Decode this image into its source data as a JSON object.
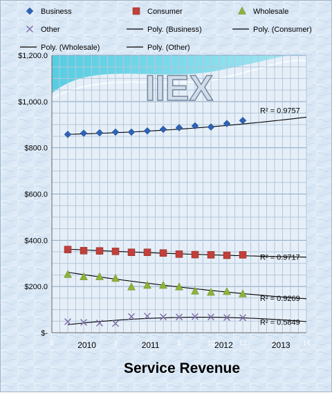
{
  "chart_data": {
    "type": "scatter",
    "title": "Service Revenue",
    "watermark": "IIEX",
    "xlim": [
      0,
      16
    ],
    "ylim": [
      0,
      1200
    ],
    "x_minor_ticks": [
      "0",
      "2",
      "4",
      "6",
      "8",
      "10",
      "12",
      "14",
      "16"
    ],
    "x_year_labels": [
      {
        "x": 2.2,
        "label": "2010"
      },
      {
        "x": 6.2,
        "label": "2011"
      },
      {
        "x": 10.8,
        "label": "2012"
      },
      {
        "x": 14.4,
        "label": "2013"
      }
    ],
    "y_ticks": [
      {
        "value": 0,
        "label": "$-"
      },
      {
        "value": 200,
        "label": "$200.0"
      },
      {
        "value": 400,
        "label": "$400.0"
      },
      {
        "value": 600,
        "label": "$600.0"
      },
      {
        "value": 800,
        "label": "$800.0"
      },
      {
        "value": 1000,
        "label": "$1,000.0"
      },
      {
        "value": 1200,
        "label": "$1,200.0"
      }
    ],
    "grid": true,
    "series": [
      {
        "name": "Business",
        "marker": "diamond",
        "color": "#2e62b5",
        "x": [
          1,
          2,
          3,
          4,
          5,
          6,
          7,
          8,
          9,
          10,
          11,
          12
        ],
        "y": [
          858,
          863,
          865,
          868,
          868,
          873,
          880,
          887,
          895,
          890,
          905,
          918
        ]
      },
      {
        "name": "Consumer",
        "marker": "square",
        "color": "#c0403a",
        "x": [
          1,
          2,
          3,
          4,
          5,
          6,
          7,
          8,
          9,
          10,
          11,
          12
        ],
        "y": [
          360,
          355,
          354,
          352,
          348,
          348,
          345,
          340,
          338,
          337,
          335,
          337
        ]
      },
      {
        "name": "Wholesale",
        "marker": "triangle",
        "color": "#8db23a",
        "x": [
          1,
          2,
          3,
          4,
          5,
          6,
          7,
          8,
          9,
          10,
          11,
          12
        ],
        "y": [
          252,
          242,
          242,
          235,
          198,
          205,
          205,
          198,
          180,
          175,
          178,
          168
        ]
      },
      {
        "name": "Other",
        "marker": "x",
        "color": "#7a6aa6",
        "x": [
          1,
          2,
          3,
          4,
          5,
          6,
          7,
          8,
          9,
          10,
          11,
          12
        ],
        "y": [
          48,
          45,
          42,
          40,
          70,
          72,
          68,
          68,
          70,
          68,
          66,
          65
        ]
      }
    ],
    "trendlines": [
      {
        "name": "Poly. (Business)",
        "coef": [
          857,
          1.2,
          0.22
        ],
        "r2_label": "R² = 0.9757",
        "label_at": [
          13,
          950
        ]
      },
      {
        "name": "Poly. (Consumer)",
        "coef": [
          365,
          -3.5,
          0.07
        ],
        "r2_label": "R² = 0.9717",
        "label_at": [
          13,
          315
        ]
      },
      {
        "name": "Poly. (Wholesale)",
        "coef": [
          272,
          -10.7,
          0.18
        ],
        "r2_label": "R² = 0.9269",
        "label_at": [
          13,
          137
        ]
      },
      {
        "name": "Poly. (Other)",
        "coef": [
          27,
          8.5,
          -0.45
        ],
        "r2_label": "R² = 0.5849",
        "label_at": [
          13,
          35
        ]
      }
    ],
    "legend": [
      {
        "label": "Business",
        "kind": "diamond",
        "color": "#2e62b5"
      },
      {
        "label": "Consumer",
        "kind": "square",
        "color": "#c0403a"
      },
      {
        "label": "Wholesale",
        "kind": "triangle",
        "color": "#8db23a"
      },
      {
        "label": "Other",
        "kind": "x",
        "color": "#7a6aa6"
      },
      {
        "label": "Poly. (Business)",
        "kind": "line",
        "color": "#000000"
      },
      {
        "label": "Poly. (Consumer)",
        "kind": "line",
        "color": "#000000"
      },
      {
        "label": "Poly. (Wholesale)",
        "kind": "line",
        "color": "#000000"
      },
      {
        "label": "Poly. (Other)",
        "kind": "line",
        "color": "#000000"
      }
    ],
    "legend_placement": "top"
  }
}
